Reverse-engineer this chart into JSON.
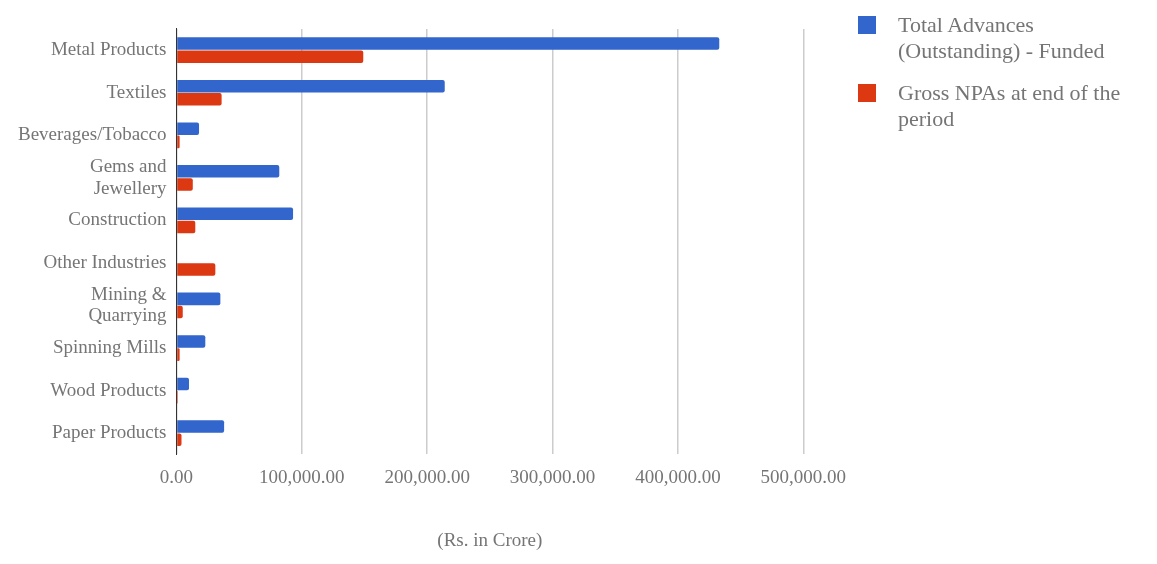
{
  "chart_data": {
    "type": "bar",
    "orientation": "horizontal",
    "categories": [
      "Metal Products",
      "Textiles",
      "Beverages/Tobacco",
      "Gems and Jewellery",
      "Construction",
      "Other Industries",
      "Mining & Quarrying",
      "Spinning Mills",
      "Wood Products",
      "Paper Products"
    ],
    "series": [
      {
        "name": "Total Advances (Outstanding) - Funded",
        "color": "#3366cc",
        "values": [
          433000,
          214000,
          18000,
          82000,
          93000,
          0,
          35000,
          23000,
          10000,
          38000
        ]
      },
      {
        "name": "Gross NPAs at end of the period",
        "color": "#dc3912",
        "values": [
          149000,
          36000,
          2500,
          13000,
          15000,
          31000,
          5000,
          2500,
          1000,
          4000
        ]
      }
    ],
    "xlabel": "(Rs. in Crore)",
    "xlim": [
      0,
      500000
    ],
    "xticks": [
      {
        "value": 0,
        "label": "0.00"
      },
      {
        "value": 100000,
        "label": "100,000.00"
      },
      {
        "value": 200000,
        "label": "200,000.00"
      },
      {
        "value": 300000,
        "label": "300,000.00"
      },
      {
        "value": 400000,
        "label": "400,000.00"
      },
      {
        "value": 500000,
        "label": "500,000.00"
      }
    ],
    "grid": "x",
    "legend": "top right"
  }
}
